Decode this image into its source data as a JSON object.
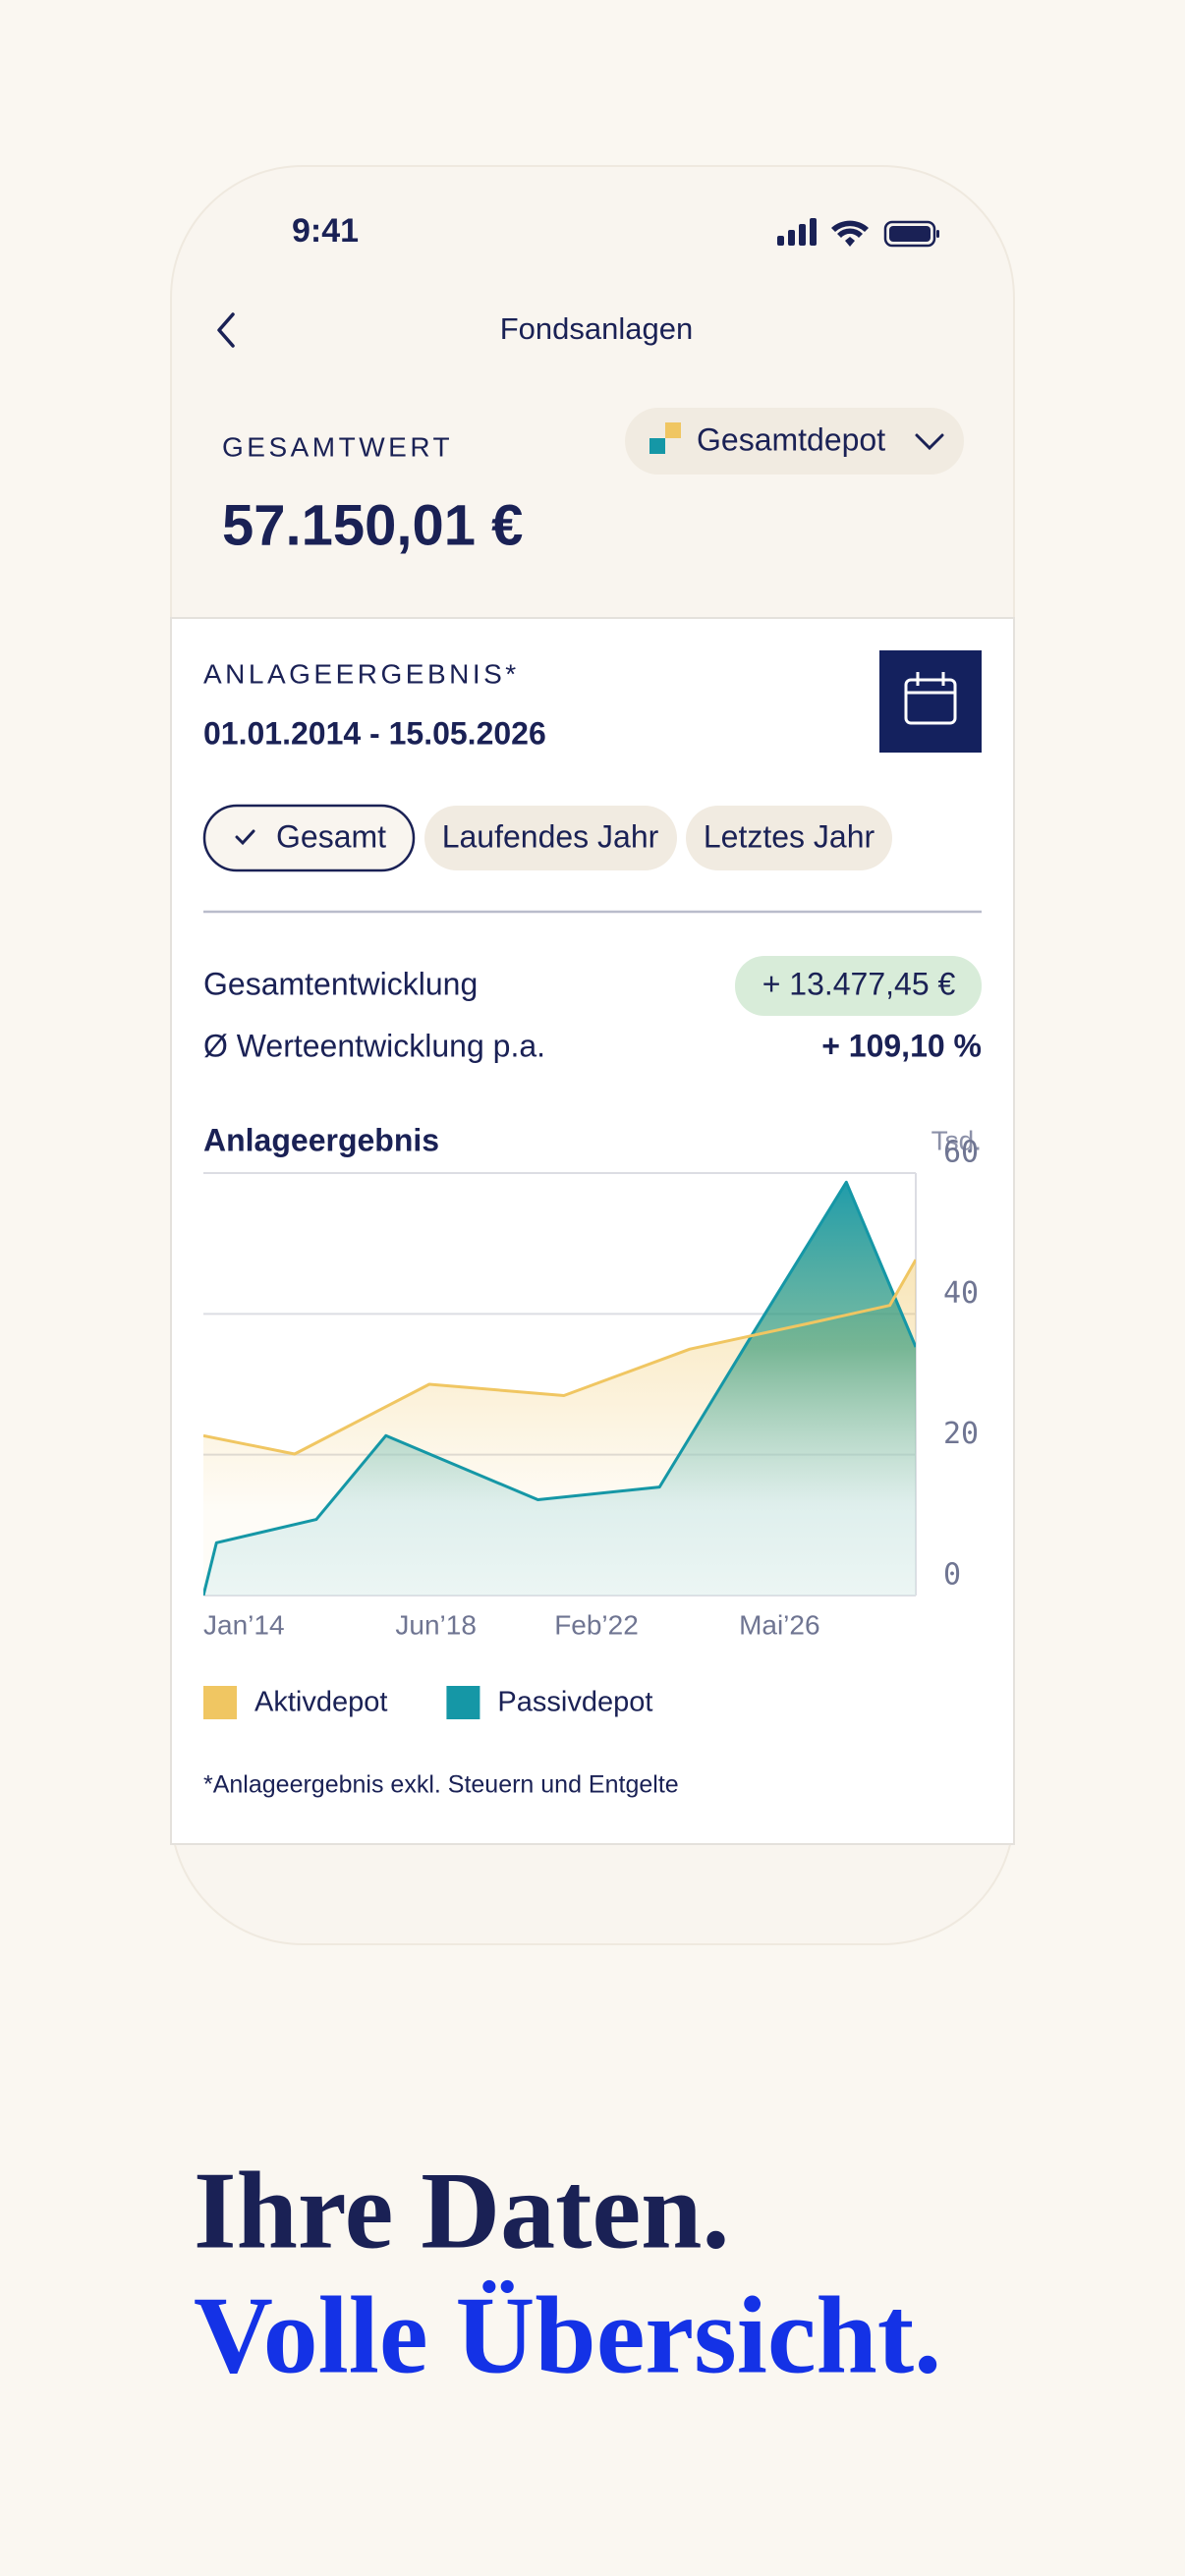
{
  "status_bar": {
    "time": "9:41"
  },
  "header": {
    "title": "Fondsanlagen"
  },
  "portfolio": {
    "label": "GESAMTWERT",
    "value": "57.150,01 €",
    "selector": "Gesamtdepot"
  },
  "result": {
    "label": "ANLAGEERGEBNIS*",
    "period": "01.01.2014 - 15.05.2026",
    "filters": [
      "Gesamt",
      "Laufendes Jahr",
      "Letztes Jahr"
    ],
    "metrics": [
      {
        "label": "Gesamtentwicklung",
        "value": "+ 13.477,45 €"
      },
      {
        "label": "Ø Werteentwicklung p.a.",
        "value": "+ 109,10 %"
      }
    ],
    "chart": {
      "type": "area",
      "title": "Anlageergebnis",
      "y_unit": "Tsd.",
      "xlim": [
        2014,
        2030.4
      ],
      "xticks": [
        {
          "value": 2014,
          "label": "Jan’14"
        },
        {
          "value": 2018.42,
          "label": "Jun’18"
        },
        {
          "value": 2022.08,
          "label": "Feb’22"
        },
        {
          "value": 2026.33,
          "label": "Mai’26"
        }
      ],
      "ylim": [
        0,
        60
      ],
      "yticks": [
        0,
        20,
        40,
        60
      ],
      "grid": true,
      "series": [
        {
          "name": "Aktivdepot",
          "color": "#f0c662",
          "x": [
            2014.0,
            2016.1,
            2019.2,
            2022.3,
            2025.2,
            2026.7,
            2027.9,
            2029.8,
            2030.4
          ],
          "values": [
            22.7,
            20.1,
            30.0,
            28.4,
            35.0,
            37.0,
            38.6,
            41.2,
            47.7
          ]
        },
        {
          "name": "Passivdepot",
          "color": "#1597a6",
          "x": [
            2014.0,
            2014.3,
            2016.6,
            2018.2,
            2021.7,
            2024.5,
            2026.7,
            2028.8,
            2030.4
          ],
          "values": [
            0,
            7.5,
            10.8,
            22.7,
            13.6,
            15.4,
            37.7,
            58.7,
            35.3
          ]
        }
      ]
    },
    "footnote": "*Anlageergebnis exkl. Steuern und Entgelte"
  },
  "headline": {
    "line1": "Ihre Daten.",
    "line2": "Volle Übersicht."
  }
}
